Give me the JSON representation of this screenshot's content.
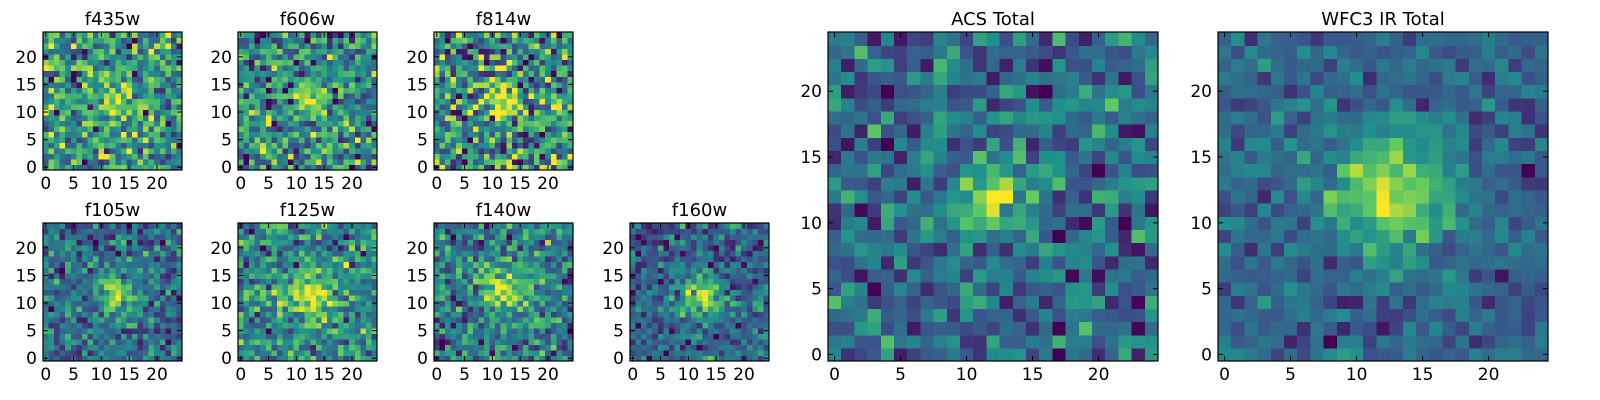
{
  "figure": {
    "description_colormap": "viridis"
  },
  "colormap": {
    "name": "viridis",
    "stops": [
      "#440154",
      "#3b528b",
      "#21918c",
      "#5ec962",
      "#fde725"
    ]
  },
  "chart_data": [
    {
      "type": "heatmap",
      "title": "f435w",
      "grid_size": 25,
      "xticks": [
        0,
        5,
        10,
        15,
        20
      ],
      "yticks": [
        0,
        5,
        10,
        15,
        20
      ],
      "xlim": [
        -0.5,
        24.5
      ],
      "ylim": [
        -0.5,
        24.5
      ],
      "seed": 11,
      "noise": 0.85,
      "source_amplitude": 0.55,
      "source_center": [
        12.5,
        12.5
      ],
      "source_sigma": 2.2,
      "contrast": 1.3
    },
    {
      "type": "heatmap",
      "title": "f606w",
      "grid_size": 25,
      "xticks": [
        0,
        5,
        10,
        15,
        20
      ],
      "yticks": [
        0,
        5,
        10,
        15,
        20
      ],
      "xlim": [
        -0.5,
        24.5
      ],
      "ylim": [
        -0.5,
        24.5
      ],
      "seed": 23,
      "noise": 0.85,
      "source_amplitude": 0.6,
      "source_center": [
        12.5,
        12.5
      ],
      "source_sigma": 2.0,
      "contrast": 1.35
    },
    {
      "type": "heatmap",
      "title": "f814w",
      "grid_size": 25,
      "xticks": [
        0,
        5,
        10,
        15,
        20
      ],
      "yticks": [
        0,
        5,
        10,
        15,
        20
      ],
      "xlim": [
        -0.5,
        24.5
      ],
      "ylim": [
        -0.5,
        24.5
      ],
      "seed": 37,
      "noise": 0.9,
      "source_amplitude": 0.55,
      "source_center": [
        12.5,
        12.5
      ],
      "source_sigma": 2.0,
      "contrast": 1.45
    },
    {
      "type": "heatmap",
      "title": "f105w",
      "grid_size": 25,
      "xticks": [
        0,
        5,
        10,
        15,
        20
      ],
      "yticks": [
        0,
        5,
        10,
        15,
        20
      ],
      "xlim": [
        -0.5,
        24.5
      ],
      "ylim": [
        -0.5,
        24.5
      ],
      "seed": 51,
      "noise": 0.8,
      "source_amplitude": 0.75,
      "source_center": [
        13.0,
        12.0
      ],
      "source_sigma": 2.6,
      "contrast": 1.25
    },
    {
      "type": "heatmap",
      "title": "f125w",
      "grid_size": 25,
      "xticks": [
        0,
        5,
        10,
        15,
        20
      ],
      "yticks": [
        0,
        5,
        10,
        15,
        20
      ],
      "xlim": [
        -0.5,
        24.5
      ],
      "ylim": [
        -0.5,
        24.5
      ],
      "seed": 67,
      "noise": 0.8,
      "source_amplitude": 0.8,
      "source_center": [
        12.5,
        11.5
      ],
      "source_sigma": 2.6,
      "contrast": 1.25
    },
    {
      "type": "heatmap",
      "title": "f140w",
      "grid_size": 25,
      "xticks": [
        0,
        5,
        10,
        15,
        20
      ],
      "yticks": [
        0,
        5,
        10,
        15,
        20
      ],
      "xlim": [
        -0.5,
        24.5
      ],
      "ylim": [
        -0.5,
        24.5
      ],
      "seed": 79,
      "noise": 0.8,
      "source_amplitude": 0.85,
      "source_center": [
        12.0,
        12.5
      ],
      "source_sigma": 2.8,
      "contrast": 1.3
    },
    {
      "type": "heatmap",
      "title": "f160w",
      "grid_size": 25,
      "xticks": [
        0,
        5,
        10,
        15,
        20
      ],
      "yticks": [
        0,
        5,
        10,
        15,
        20
      ],
      "xlim": [
        -0.5,
        24.5
      ],
      "ylim": [
        -0.5,
        24.5
      ],
      "seed": 97,
      "noise": 0.75,
      "source_amplitude": 0.85,
      "source_center": [
        12.5,
        11.0
      ],
      "source_sigma": 3.0,
      "contrast": 1.25
    },
    {
      "type": "heatmap",
      "title": "ACS Total",
      "grid_size": 25,
      "xticks": [
        0,
        5,
        10,
        15,
        20
      ],
      "yticks": [
        0,
        5,
        10,
        15,
        20
      ],
      "xlim": [
        -0.5,
        24.5
      ],
      "ylim": [
        -0.5,
        24.5
      ],
      "seed": 131,
      "noise": 0.55,
      "source_amplitude": 0.8,
      "source_center": [
        12.0,
        12.0
      ],
      "source_sigma": 1.6,
      "contrast": 1.15
    },
    {
      "type": "heatmap",
      "title": "WFC3 IR Total",
      "grid_size": 25,
      "xticks": [
        0,
        5,
        10,
        15,
        20
      ],
      "yticks": [
        0,
        5,
        10,
        15,
        20
      ],
      "xlim": [
        -0.5,
        24.5
      ],
      "ylim": [
        -0.5,
        24.5
      ],
      "seed": 173,
      "noise": 0.45,
      "source_amplitude": 0.9,
      "source_center": [
        12.5,
        12.5
      ],
      "source_sigma": 3.2,
      "contrast": 1.05
    }
  ]
}
